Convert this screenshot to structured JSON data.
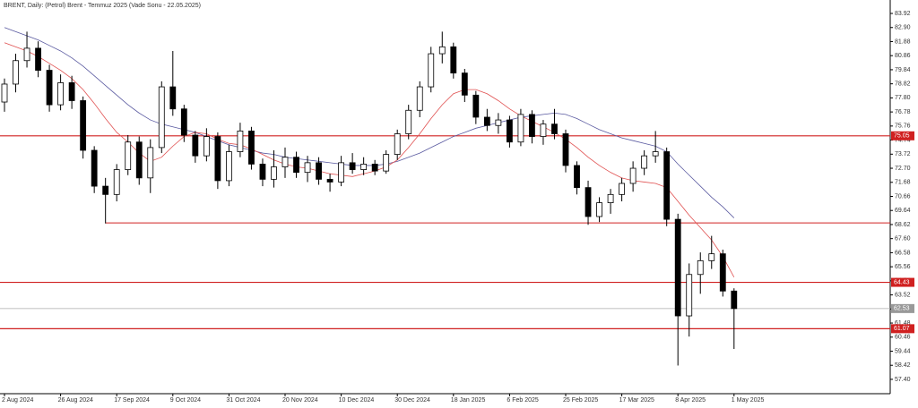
{
  "chart_data": {
    "type": "candlestick",
    "title": "BRENT, Daily:  (Petrol) Brent - Temmuz 2025 (Vade Sonu - 22.05.2025)",
    "categories": [
      "2 Aug 2024",
      null,
      null,
      null,
      null,
      "26 Aug 2024",
      null,
      null,
      null,
      null,
      "17 Sep 2024",
      null,
      null,
      null,
      null,
      "9 Oct 2024",
      null,
      null,
      null,
      null,
      "31 Oct 2024",
      null,
      null,
      null,
      null,
      "20 Nov 2024",
      null,
      null,
      null,
      null,
      "10 Dec 2024",
      null,
      null,
      null,
      null,
      "30 Dec 2024",
      null,
      null,
      null,
      null,
      "18 Jan 2025",
      null,
      null,
      null,
      null,
      "6 Feb 2025",
      null,
      null,
      null,
      null,
      "25 Feb 2025",
      null,
      null,
      null,
      null,
      "17 Mar 2025",
      null,
      null,
      null,
      null,
      "8 Apr 2025",
      null,
      null,
      null,
      null,
      "1 May 2025"
    ],
    "open": [
      77.5,
      78.8,
      80.5,
      81.4,
      79.8,
      77.3,
      78.9,
      77.6,
      74.0,
      71.4,
      70.8,
      72.6,
      74.6,
      72.0,
      74.2,
      78.6,
      77.0,
      75.1,
      73.6,
      75.0,
      71.8,
      73.9,
      75.4,
      73.0,
      71.9,
      72.8,
      73.5,
      72.4,
      73.1,
      71.9,
      71.7,
      73.1,
      72.6,
      73.0,
      72.5,
      73.7,
      75.2,
      76.9,
      78.6,
      81.0,
      81.5,
      79.6,
      78.0,
      76.4,
      75.8,
      76.2,
      74.6,
      76.6,
      75.0,
      75.9,
      75.2,
      72.9,
      71.3,
      69.2,
      70.2,
      70.8,
      71.6,
      72.7,
      73.6,
      73.9,
      69.0,
      62.0,
      65.0,
      66.0,
      66.5,
      63.8
    ],
    "high": [
      79.2,
      81.0,
      82.6,
      81.9,
      80.2,
      79.5,
      79.4,
      77.9,
      74.3,
      72.0,
      73.0,
      75.1,
      75.0,
      74.8,
      79.0,
      81.2,
      77.3,
      75.4,
      75.6,
      75.3,
      74.4,
      76.0,
      75.7,
      73.4,
      74.0,
      74.2,
      73.9,
      73.6,
      73.5,
      72.3,
      73.6,
      73.8,
      73.5,
      73.3,
      74.0,
      75.5,
      77.3,
      79.0,
      81.5,
      82.6,
      81.8,
      79.9,
      78.3,
      77.0,
      76.7,
      76.5,
      77.0,
      76.9,
      76.2,
      77.0,
      75.5,
      73.2,
      71.8,
      70.6,
      71.2,
      72.0,
      73.2,
      74.0,
      75.4,
      74.2,
      69.4,
      65.8,
      66.6,
      67.8,
      66.8,
      64.0
    ],
    "low": [
      76.8,
      78.2,
      80.0,
      79.3,
      76.8,
      76.9,
      77.0,
      73.4,
      70.9,
      68.7,
      70.3,
      72.2,
      71.5,
      70.9,
      73.8,
      76.5,
      74.6,
      73.1,
      73.2,
      71.2,
      71.4,
      73.5,
      72.6,
      71.4,
      71.3,
      72.0,
      72.0,
      71.7,
      71.5,
      71.0,
      71.4,
      72.3,
      72.2,
      72.2,
      72.3,
      73.3,
      74.8,
      76.4,
      78.2,
      80.3,
      79.2,
      77.5,
      75.9,
      75.4,
      75.2,
      74.2,
      74.3,
      74.5,
      74.4,
      74.8,
      72.4,
      70.8,
      68.6,
      68.8,
      69.4,
      70.3,
      71.0,
      72.2,
      73.1,
      68.5,
      58.4,
      60.5,
      63.6,
      65.4,
      63.4,
      59.6
    ],
    "close": [
      78.8,
      80.5,
      81.4,
      79.8,
      77.3,
      78.9,
      77.6,
      74.0,
      71.4,
      70.8,
      72.6,
      74.6,
      72.0,
      74.2,
      78.6,
      77.0,
      75.1,
      73.6,
      75.0,
      71.8,
      73.9,
      75.4,
      73.0,
      71.9,
      72.8,
      73.5,
      72.4,
      73.1,
      71.9,
      71.7,
      73.1,
      72.6,
      73.0,
      72.5,
      73.7,
      75.2,
      76.9,
      78.6,
      81.0,
      81.5,
      79.6,
      78.0,
      76.4,
      75.8,
      76.2,
      74.6,
      76.6,
      75.0,
      75.9,
      75.2,
      72.9,
      71.3,
      69.2,
      70.2,
      70.8,
      71.6,
      72.7,
      73.6,
      73.9,
      69.0,
      62.0,
      65.0,
      66.0,
      66.5,
      63.8,
      62.53
    ],
    "moving_averages": [
      {
        "color": "#5a5aa0",
        "values": [
          82.9,
          82.6,
          82.3,
          82.0,
          81.6,
          81.2,
          80.7,
          80.1,
          79.4,
          78.7,
          78.0,
          77.3,
          76.7,
          76.2,
          75.9,
          75.7,
          75.5,
          75.3,
          75.0,
          74.7,
          74.4,
          74.2,
          74.0,
          73.8,
          73.7,
          73.5,
          73.4,
          73.3,
          73.2,
          73.1,
          73.0,
          72.9,
          72.9,
          72.9,
          73.0,
          73.2,
          73.5,
          73.8,
          74.2,
          74.6,
          75.0,
          75.3,
          75.6,
          75.8,
          76.0,
          76.2,
          76.4,
          76.5,
          76.6,
          76.7,
          76.6,
          76.3,
          75.9,
          75.5,
          75.2,
          74.9,
          74.7,
          74.5,
          74.3,
          73.9,
          73.0,
          72.2,
          71.4,
          70.6,
          69.9,
          69.1
        ]
      },
      {
        "color": "#e05050",
        "values": [
          81.8,
          81.5,
          81.2,
          80.8,
          80.3,
          79.8,
          79.2,
          78.4,
          77.4,
          76.3,
          75.3,
          74.6,
          73.8,
          73.2,
          73.5,
          74.3,
          75.0,
          75.3,
          75.2,
          74.8,
          74.5,
          74.4,
          74.1,
          73.7,
          73.3,
          73.0,
          72.8,
          72.7,
          72.5,
          72.3,
          72.2,
          72.1,
          72.3,
          72.5,
          72.8,
          73.3,
          74.2,
          75.2,
          76.3,
          77.3,
          78.1,
          78.4,
          78.4,
          78.1,
          77.6,
          77.0,
          76.5,
          76.1,
          75.7,
          75.3,
          74.8,
          74.2,
          73.5,
          72.9,
          72.4,
          72.0,
          71.8,
          71.7,
          71.6,
          71.3,
          70.3,
          69.3,
          68.4,
          67.5,
          66.3,
          64.8
        ]
      }
    ],
    "levels": [
      75.05,
      64.43,
      61.07
    ],
    "level_color": "#d02020",
    "support_line": 68.74,
    "current_price": 62.53,
    "ylim": [
      56.36,
      84.57
    ],
    "yticks": [
      83.92,
      {
        "value": 82.9,
        "label": "82.90"
      },
      81.88,
      80.86,
      79.84,
      78.82,
      {
        "value": 77.8,
        "label": "77.80"
      },
      76.78,
      75.76,
      74.74,
      73.72,
      {
        "value": 72.7,
        "label": "72.70"
      },
      71.68,
      70.66,
      69.64,
      68.62,
      {
        "value": 67.6,
        "label": "67.60"
      },
      66.58,
      65.56,
      64.54,
      63.52,
      {
        "value": 62.5,
        "label": "62.50"
      },
      61.48,
      60.46,
      59.44,
      58.42,
      {
        "value": 57.4,
        "label": "57.40"
      }
    ]
  }
}
